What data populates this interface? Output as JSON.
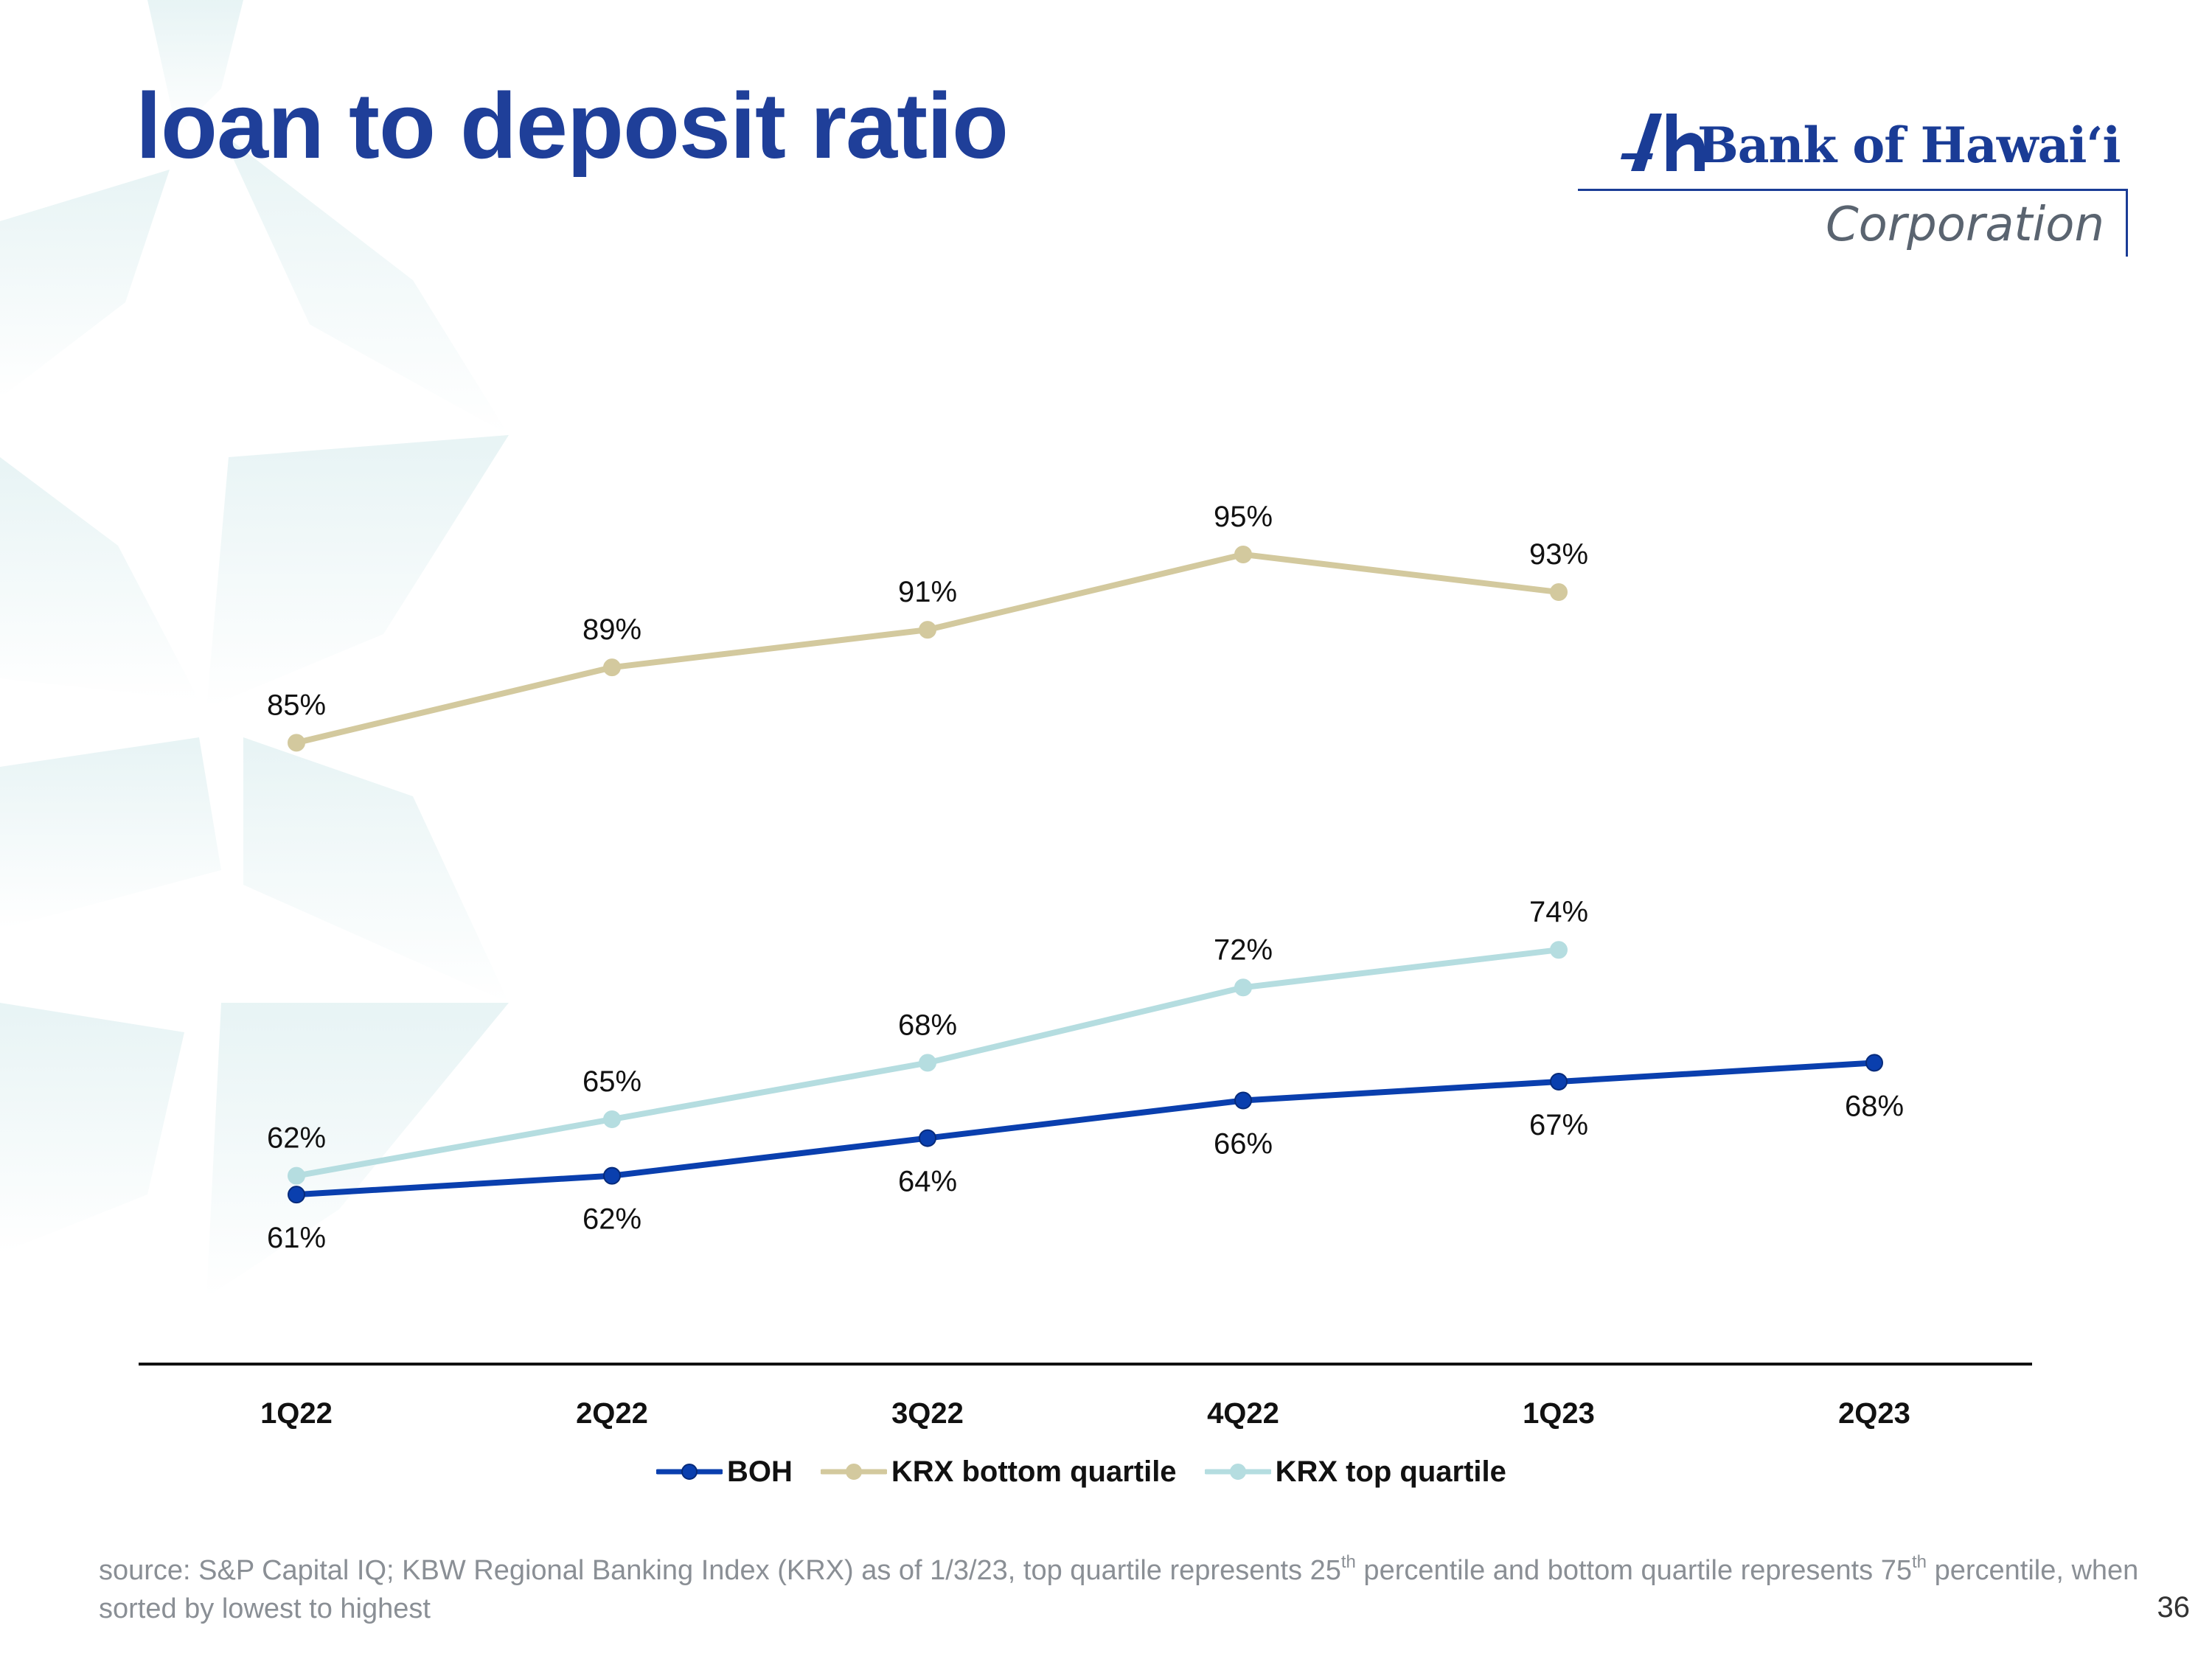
{
  "slide": {
    "title": "loan to deposit ratio",
    "page_number": "36",
    "colors": {
      "title": "#1f3f99",
      "logo": "#1a3c96",
      "footnote": "#8a8f95"
    }
  },
  "logo": {
    "name": "Bank of Hawaiʻi",
    "subtitle": "Corporation",
    "icon": "bank-of-hawaii-h-mark-icon"
  },
  "footnote": {
    "part1": "source: S&P Capital IQ; KBW Regional Banking Index (KRX) as of 1/3/23, top quartile represents 25",
    "sup1": "th",
    "part2": " percentile and bottom quartile represents 75",
    "sup2": "th",
    "part3": " percentile, when sorted by lowest to highest"
  },
  "chart_data": {
    "type": "line",
    "categories": [
      "1Q22",
      "2Q22",
      "3Q22",
      "4Q22",
      "1Q23",
      "2Q23"
    ],
    "series": [
      {
        "name": "BOH",
        "values": [
          61,
          62,
          64,
          66,
          67,
          68
        ],
        "color": "#0a3fae",
        "label_position": "below"
      },
      {
        "name": "KRX bottom quartile",
        "values": [
          85,
          89,
          91,
          95,
          93,
          null
        ],
        "color": "#d3c99e",
        "label_position": "above"
      },
      {
        "name": "KRX top quartile",
        "values": [
          62,
          65,
          68,
          72,
          74,
          null
        ],
        "color": "#b5dde0",
        "label_position": "above"
      }
    ],
    "value_suffix": "%",
    "ylim": [
      52,
      108
    ],
    "y_axis_visible": false,
    "grid": false,
    "legend_position": "bottom-center",
    "title": "",
    "xlabel": "",
    "ylabel": ""
  }
}
